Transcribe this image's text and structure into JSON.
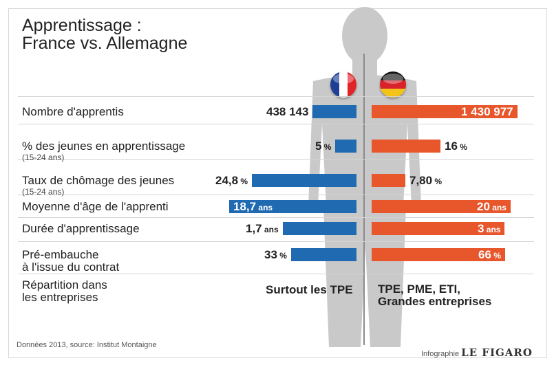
{
  "title_line1": "Apprentissage :",
  "title_line2": "France vs. Allemagne",
  "source": "Données 2013, source: Institut Montaigne",
  "credit_prefix": "Infographie",
  "credit_brand": "LE FIGARO",
  "flags": {
    "france_colors": [
      "#1f3f95",
      "#ffffff",
      "#e0242a"
    ],
    "germany_colors": [
      "#111111",
      "#d8232a",
      "#f3c318"
    ]
  },
  "chart_data": {
    "type": "bar",
    "layout": "mirrored-horizontal",
    "title": "Apprentissage : France vs. Allemagne",
    "series": [
      {
        "name": "France",
        "color": "#1f6ab0"
      },
      {
        "name": "Allemagne",
        "color": "#e8562b"
      }
    ],
    "rows": [
      {
        "label": "Nombre d'apprentis",
        "sub": "",
        "fr": {
          "value": 438143,
          "text": "438 143",
          "unit": "",
          "inside": false
        },
        "de": {
          "value": 1430977,
          "text": "1 430 977",
          "unit": "",
          "inside": true
        }
      },
      {
        "label": "% des jeunes en apprentissage",
        "sub": "(15-24 ans)",
        "fr": {
          "value": 5,
          "text": "5",
          "unit": "%",
          "inside": false
        },
        "de": {
          "value": 16,
          "text": "16",
          "unit": "%",
          "inside": false
        }
      },
      {
        "label": "Taux de chômage des jeunes",
        "sub": "(15-24 ans)",
        "fr": {
          "value": 24.8,
          "text": "24,8",
          "unit": "%",
          "inside": false
        },
        "de": {
          "value": 7.8,
          "text": "7,80",
          "unit": "%",
          "inside": false
        }
      },
      {
        "label": "Moyenne d'âge de l'apprenti",
        "sub": "",
        "fr": {
          "value": 18.7,
          "text": "18,7",
          "unit": "ans",
          "inside": true
        },
        "de": {
          "value": 20,
          "text": "20",
          "unit": "ans",
          "inside": true
        }
      },
      {
        "label": "Durée d'apprentissage",
        "sub": "",
        "fr": {
          "value": 1.7,
          "text": "1,7",
          "unit": "ans",
          "inside": false
        },
        "de": {
          "value": 3,
          "text": "3",
          "unit": "ans",
          "inside": true
        }
      },
      {
        "label": "Pré-embauche",
        "label2": "à l'issue du contrat",
        "sub": "",
        "fr": {
          "value": 33,
          "text": "33",
          "unit": "%",
          "inside": false
        },
        "de": {
          "value": 66,
          "text": "66",
          "unit": "%",
          "inside": true
        }
      }
    ],
    "text_row": {
      "label1": "Répartition dans",
      "label2": "les entreprises",
      "fr": "Surtout les TPE",
      "de_line1": "TPE, PME, ETI,",
      "de_line2": "Grandes entreprises"
    }
  }
}
